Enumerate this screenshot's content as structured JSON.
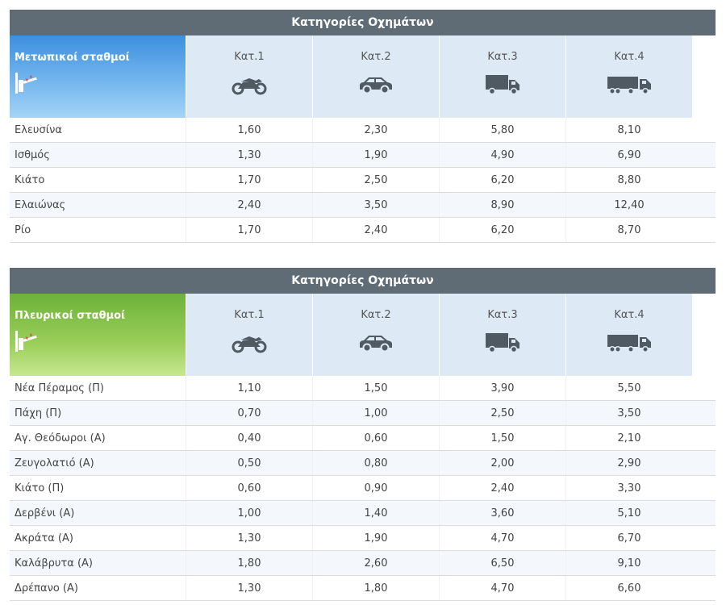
{
  "section_header": "Κατηγορίες Οχημάτων",
  "categories": [
    "Κατ.1",
    "Κατ.2",
    "Κατ.3",
    "Κατ.4"
  ],
  "vehicle_icons": [
    "motorcycle-icon",
    "car-icon",
    "truck-icon",
    "semi-truck-icon"
  ],
  "colors": {
    "header_bg": "#5f6c75",
    "frontal_accent": "#3c8fdf",
    "side_accent": "#6cb23a",
    "category_bg": "#ddeaf5",
    "icon": "#4f5a63"
  },
  "frontal": {
    "title": "Μετωπικοί σταθμοί",
    "rows": [
      {
        "name": "Ελευσίνα",
        "values": [
          "1,60",
          "2,30",
          "5,80",
          "8,10"
        ]
      },
      {
        "name": "Ισθμός",
        "values": [
          "1,30",
          "1,90",
          "4,90",
          "6,90"
        ]
      },
      {
        "name": "Κιάτο",
        "values": [
          "1,70",
          "2,50",
          "6,20",
          "8,80"
        ]
      },
      {
        "name": "Ελαιώνας",
        "values": [
          "2,40",
          "3,50",
          "8,90",
          "12,40"
        ]
      },
      {
        "name": "Ρίο",
        "values": [
          "1,70",
          "2,40",
          "6,20",
          "8,70"
        ]
      }
    ]
  },
  "side": {
    "title": "Πλευρικοί σταθμοί",
    "rows": [
      {
        "name": "Νέα Πέραμος (Π)",
        "values": [
          "1,10",
          "1,50",
          "3,90",
          "5,50"
        ]
      },
      {
        "name": "Πάχη (Π)",
        "values": [
          "0,70",
          "1,00",
          "2,50",
          "3,50"
        ]
      },
      {
        "name": "Αγ. Θεόδωροι (Α)",
        "values": [
          "0,40",
          "0,60",
          "1,50",
          "2,10"
        ]
      },
      {
        "name": "Ζευγολατιό (Α)",
        "values": [
          "0,50",
          "0,80",
          "2,00",
          "2,90"
        ]
      },
      {
        "name": "Κιάτο (Π)",
        "values": [
          "0,60",
          "0,90",
          "2,40",
          "3,30"
        ]
      },
      {
        "name": "Δερβένι (Α)",
        "values": [
          "1,00",
          "1,40",
          "3,60",
          "5,10"
        ]
      },
      {
        "name": "Ακράτα (Α)",
        "values": [
          "1,30",
          "1,90",
          "4,70",
          "6,70"
        ]
      },
      {
        "name": "Καλάβρυτα (Α)",
        "values": [
          "1,80",
          "2,60",
          "6,50",
          "9,10"
        ]
      },
      {
        "name": "Δρέπανο (Α)",
        "values": [
          "1,30",
          "1,80",
          "4,70",
          "6,60"
        ]
      }
    ]
  }
}
